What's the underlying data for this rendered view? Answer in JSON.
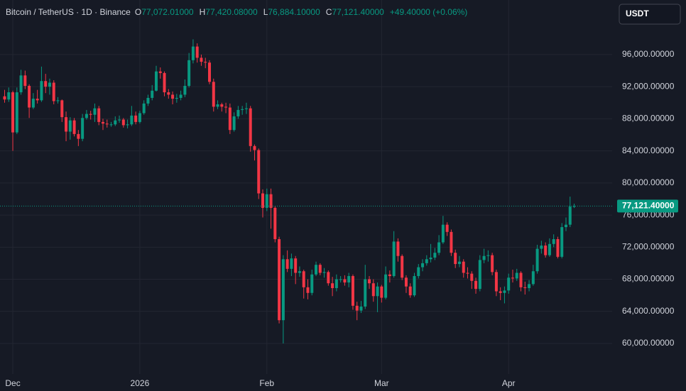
{
  "chart_data": {
    "type": "candlestick",
    "header": {
      "symbol": "Bitcoin / TetherUS · 1D · Binance",
      "items": [
        {
          "key": "O",
          "value": "77,072.01000"
        },
        {
          "key": "H",
          "value": "77,420.08000"
        },
        {
          "key": "L",
          "value": "76,884.10000"
        },
        {
          "key": "C",
          "value": "77,121.40000"
        }
      ],
      "change": "+49.40000 (+0.06%)"
    },
    "currency_button": "USDT",
    "up_color": "#089981",
    "down_color": "#f23645",
    "categories": [
      null,
      null,
      "Dec",
      null,
      null,
      null,
      null,
      null,
      null,
      null,
      null,
      null,
      null,
      null,
      null,
      null,
      null,
      null,
      null,
      null,
      null,
      null,
      null,
      null,
      null,
      null,
      null,
      null,
      null,
      null,
      null,
      null,
      null,
      "2026",
      null,
      null,
      null,
      null,
      null,
      null,
      null,
      null,
      null,
      null,
      null,
      null,
      null,
      null,
      null,
      null,
      null,
      null,
      null,
      null,
      null,
      null,
      null,
      null,
      null,
      null,
      null,
      null,
      null,
      null,
      "Feb",
      null,
      null,
      null,
      null,
      null,
      null,
      null,
      null,
      null,
      null,
      null,
      null,
      null,
      null,
      null,
      null,
      null,
      null,
      null,
      null,
      null,
      null,
      null,
      null,
      null,
      null,
      null,
      "Mar",
      null,
      null,
      null,
      null,
      null,
      null,
      null,
      null,
      null,
      null,
      null,
      null,
      null,
      null,
      null,
      null,
      null,
      null,
      null,
      null,
      null,
      null,
      null,
      null,
      null,
      null,
      null,
      null,
      null,
      null,
      "Apr",
      null,
      null,
      null,
      null,
      null,
      null,
      null,
      null,
      null,
      null,
      null,
      null,
      null,
      null,
      null,
      null
    ],
    "open": [
      90800,
      90400,
      91300,
      86300,
      91300,
      93400,
      92100,
      89400,
      90500,
      90300,
      92700,
      92000,
      92500,
      90200,
      90300,
      88200,
      86400,
      87800,
      86100,
      85500,
      88100,
      88600,
      88500,
      89300,
      87600,
      87400,
      87300,
      87300,
      87800,
      87900,
      87200,
      87300,
      88400,
      87600,
      88700,
      89900,
      90600,
      91500,
      93900,
      93700,
      91300,
      91000,
      90500,
      90600,
      91000,
      92100,
      95300,
      97000,
      95600,
      95100,
      95000,
      92600,
      89500,
      89800,
      89500,
      89400,
      86600,
      88300,
      89100,
      89200,
      89300,
      84600,
      84100,
      78700,
      76900,
      78600,
      76900,
      73000,
      62900,
      70500,
      69300,
      70600,
      68800,
      69000,
      67000,
      66300,
      68600,
      69800,
      68800,
      68900,
      67500,
      66900,
      68000,
      68000,
      67600,
      68400,
      64700,
      64100,
      64600,
      68000,
      67500,
      65900,
      67100,
      65700,
      68600,
      68400,
      72700,
      70900,
      68200,
      67100,
      66000,
      68400,
      69500,
      70000,
      70500,
      70700,
      71300,
      72600,
      74800,
      73900,
      71300,
      69900,
      70200,
      68800,
      68700,
      67800,
      66800,
      70400,
      70900,
      71000,
      68900,
      66500,
      66300,
      66600,
      68200,
      68100,
      68800,
      67000,
      66900,
      67400,
      69000,
      71800,
      72200,
      71000,
      72400,
      73000,
      70800,
      74500,
      74800,
      77072.01
    ],
    "high": [
      91600,
      91900,
      91500,
      91900,
      94100,
      94000,
      92300,
      91200,
      91600,
      94500,
      93600,
      93000,
      92800,
      90700,
      90400,
      88900,
      88200,
      88100,
      86600,
      88600,
      89100,
      89000,
      89900,
      89600,
      88000,
      87900,
      87600,
      88300,
      88400,
      88100,
      87900,
      89600,
      88900,
      89000,
      90300,
      91000,
      92200,
      94600,
      94400,
      93900,
      91700,
      91400,
      91100,
      91500,
      92900,
      96200,
      97900,
      97400,
      96000,
      95600,
      95300,
      93000,
      90300,
      90000,
      90000,
      89900,
      88800,
      89600,
      89600,
      90000,
      89600,
      84800,
      84300,
      79200,
      79300,
      79300,
      77100,
      73300,
      71000,
      71600,
      71200,
      70900,
      69600,
      69200,
      68000,
      69200,
      70200,
      70000,
      69400,
      69100,
      68300,
      68600,
      68400,
      68500,
      68800,
      68600,
      65200,
      65300,
      69800,
      68400,
      68000,
      67600,
      67300,
      69600,
      69100,
      74000,
      73100,
      71100,
      68500,
      67500,
      68800,
      69900,
      70500,
      71000,
      72400,
      71900,
      73500,
      75900,
      75100,
      74200,
      71700,
      70900,
      70500,
      69500,
      69000,
      68200,
      71000,
      71800,
      71600,
      71300,
      69200,
      67000,
      67100,
      68700,
      69200,
      69300,
      69000,
      67700,
      67900,
      69800,
      72300,
      72800,
      72600,
      73100,
      73600,
      73300,
      75000,
      75700,
      78300,
      77420.08
    ],
    "low": [
      90000,
      90100,
      84000,
      86100,
      91000,
      91700,
      88100,
      89200,
      89900,
      90100,
      91200,
      91000,
      89800,
      89900,
      87600,
      85200,
      85400,
      85800,
      84600,
      85200,
      87900,
      87900,
      87600,
      87200,
      86600,
      86900,
      87000,
      87100,
      87500,
      86900,
      86800,
      87100,
      87300,
      87400,
      88500,
      89600,
      90300,
      91400,
      93000,
      90800,
      90500,
      89800,
      90000,
      90300,
      90700,
      91900,
      94900,
      95000,
      94600,
      94300,
      92300,
      88900,
      89200,
      88900,
      88700,
      86100,
      86400,
      88000,
      88500,
      88600,
      83900,
      82800,
      78000,
      75700,
      76500,
      74300,
      72600,
      62500,
      60000,
      68900,
      68400,
      67400,
      68300,
      65600,
      65500,
      66000,
      68400,
      68500,
      68200,
      67200,
      65900,
      66500,
      67600,
      67200,
      67000,
      64200,
      62900,
      63800,
      64300,
      66800,
      65200,
      63900,
      65100,
      65500,
      67600,
      68200,
      70200,
      67900,
      66300,
      65700,
      65800,
      68100,
      69000,
      69700,
      70100,
      70400,
      71000,
      72400,
      73400,
      70900,
      69400,
      69500,
      68200,
      68100,
      66800,
      66200,
      66500,
      70000,
      70200,
      68500,
      65900,
      65400,
      65000,
      66200,
      67600,
      67800,
      66500,
      66100,
      66500,
      67200,
      68700,
      71200,
      70700,
      70800,
      72000,
      70600,
      70600,
      74000,
      74500,
      76884.1
    ],
    "close": [
      90400,
      91300,
      86300,
      91300,
      93400,
      92100,
      89400,
      90500,
      90300,
      92700,
      92000,
      92500,
      90200,
      90300,
      88200,
      86400,
      87800,
      86100,
      85500,
      88100,
      88600,
      88500,
      89300,
      87600,
      87400,
      87300,
      87300,
      87800,
      87900,
      87200,
      87300,
      88400,
      87600,
      88700,
      89900,
      90600,
      91500,
      93900,
      93700,
      91300,
      91000,
      90500,
      90600,
      91000,
      92100,
      95300,
      97000,
      95600,
      95100,
      95000,
      92600,
      89500,
      89800,
      89500,
      89400,
      86600,
      88300,
      89100,
      89200,
      89300,
      84600,
      84100,
      78700,
      76900,
      78600,
      76900,
      73000,
      62900,
      70500,
      69300,
      70600,
      68800,
      69000,
      67000,
      66300,
      68600,
      69800,
      68800,
      68900,
      67500,
      66900,
      68000,
      68000,
      67600,
      68400,
      64700,
      64100,
      64600,
      68000,
      67500,
      65900,
      67100,
      65700,
      68600,
      68400,
      72700,
      70900,
      68200,
      67100,
      66000,
      68400,
      69500,
      70000,
      70500,
      70700,
      71300,
      72600,
      74800,
      73900,
      71300,
      69900,
      70200,
      68800,
      68700,
      67800,
      66800,
      70400,
      70900,
      71000,
      68900,
      66500,
      66300,
      66600,
      68200,
      68100,
      68800,
      67000,
      66900,
      67400,
      69000,
      71800,
      72200,
      71000,
      72400,
      73000,
      70800,
      74500,
      74800,
      77050,
      77121.4
    ],
    "last_price": {
      "value": 77121.4,
      "label": "77,121.40000"
    },
    "ylim": [
      56200,
      102800
    ],
    "yticks": [
      {
        "value": 60000,
        "label": "60,000.00000"
      },
      {
        "value": 64000,
        "label": "64,000.00000"
      },
      {
        "value": 68000,
        "label": "68,000.00000"
      },
      {
        "value": 72000,
        "label": "72,000.00000"
      },
      {
        "value": 76000,
        "label": "76,000.00000"
      },
      {
        "value": 80000,
        "label": "80,000.00000"
      },
      {
        "value": 84000,
        "label": "84,000.00000"
      },
      {
        "value": 88000,
        "label": "88,000.00000"
      },
      {
        "value": 92000,
        "label": "92,000.00000"
      },
      {
        "value": 96000,
        "label": "96,000.00000"
      }
    ],
    "grid": true
  }
}
